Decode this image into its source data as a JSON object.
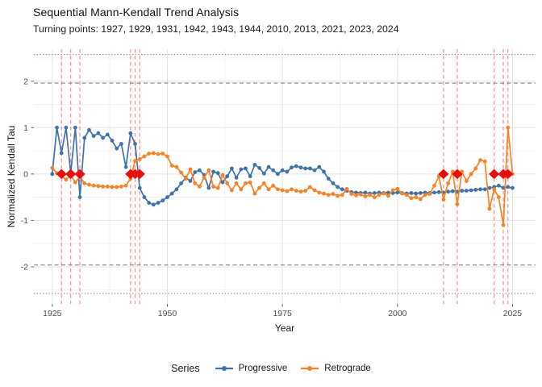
{
  "title": "Sequential Mann-Kendall Trend Analysis",
  "subtitle": "Turning points: 1927, 1929, 1931, 1942, 1943, 1944, 2010, 2013, 2021, 2023, 2024",
  "axes": {
    "x_label": "Year",
    "y_label": "Normalized Kendall Tau",
    "x_ticks": [
      1925,
      1950,
      1975,
      2000,
      2025
    ],
    "y_ticks": [
      -2,
      -1,
      0,
      1,
      2
    ]
  },
  "legend": {
    "title": "Series",
    "items": [
      {
        "label": "Progressive",
        "color": "#3e74ad"
      },
      {
        "label": "Retrograde",
        "color": "#fb8121"
      }
    ]
  },
  "colors": {
    "progressive": "#3e74ad",
    "retrograde": "#fb8121",
    "turning_point_marker": "#ec0c0c",
    "turning_point_line": "rgba(255,70,70,0.6)",
    "significance_dashed": "#808080",
    "critical_dotted": "#8c8c8c",
    "grid_major": "#e3e3e3",
    "grid_minor": "#f0f0f0",
    "tick_text": "#4d4d4d",
    "tick_mark": "#666666"
  },
  "chart_data": {
    "type": "line",
    "title": "Sequential Mann-Kendall Trend Analysis",
    "subtitle": "Turning points: 1927, 1929, 1931, 1942, 1943, 1944, 2010, 2013, 2021, 2023, 2024",
    "xlabel": "Year",
    "ylabel": "Normalized Kendall Tau",
    "xlim": [
      1921,
      2030
    ],
    "ylim": [
      -2.8,
      2.69
    ],
    "grid": true,
    "legend_position": "bottom",
    "x_minor_gridlines": [
      1937.5,
      1962.5,
      1987.5,
      2012.5
    ],
    "y_minor_gridlines": [
      -2.5,
      -1.5,
      -0.5,
      0.5,
      1.5,
      2.5
    ],
    "reference_lines": {
      "dashed_significance": [
        1.96,
        -1.96
      ],
      "dotted_critical": [
        2.576,
        -2.576
      ]
    },
    "turning_points": [
      1927,
      1929,
      1931,
      1942,
      1943,
      1944,
      2010,
      2013,
      2021,
      2023,
      2024
    ],
    "turning_point_y": 0,
    "x": [
      1925,
      1926,
      1927,
      1928,
      1929,
      1930,
      1931,
      1932,
      1933,
      1934,
      1935,
      1936,
      1937,
      1938,
      1939,
      1940,
      1941,
      1942,
      1943,
      1944,
      1945,
      1946,
      1947,
      1948,
      1949,
      1950,
      1951,
      1952,
      1953,
      1954,
      1955,
      1956,
      1957,
      1958,
      1959,
      1960,
      1961,
      1962,
      1963,
      1964,
      1965,
      1966,
      1967,
      1968,
      1969,
      1970,
      1971,
      1972,
      1973,
      1974,
      1975,
      1976,
      1977,
      1978,
      1979,
      1980,
      1981,
      1982,
      1983,
      1984,
      1985,
      1986,
      1987,
      1988,
      1989,
      1990,
      1991,
      1992,
      1993,
      1994,
      1995,
      1996,
      1997,
      1998,
      1999,
      2000,
      2001,
      2002,
      2003,
      2004,
      2005,
      2006,
      2007,
      2008,
      2009,
      2010,
      2011,
      2012,
      2013,
      2014,
      2015,
      2016,
      2017,
      2018,
      2019,
      2020,
      2021,
      2022,
      2023,
      2024,
      2025
    ],
    "series": [
      {
        "name": "Progressive",
        "color": "#3e74ad",
        "values": [
          0.0,
          1.0,
          0.45,
          1.0,
          0.02,
          1.0,
          -0.5,
          0.78,
          0.95,
          0.82,
          0.88,
          0.78,
          0.85,
          0.72,
          0.55,
          0.65,
          0.15,
          0.88,
          0.65,
          -0.3,
          -0.5,
          -0.62,
          -0.66,
          -0.62,
          -0.57,
          -0.5,
          -0.42,
          -0.33,
          -0.2,
          -0.08,
          -0.15,
          0.04,
          0.08,
          -0.02,
          -0.3,
          0.05,
          0.02,
          -0.18,
          -0.05,
          0.12,
          -0.08,
          0.1,
          0.12,
          -0.05,
          0.2,
          0.13,
          0.01,
          0.15,
          0.08,
          0.0,
          0.08,
          0.05,
          0.14,
          0.17,
          0.14,
          0.12,
          0.12,
          0.08,
          0.15,
          0.05,
          -0.1,
          -0.2,
          -0.28,
          -0.33,
          -0.36,
          -0.39,
          -0.4,
          -0.41,
          -0.4,
          -0.42,
          -0.41,
          -0.4,
          -0.41,
          -0.4,
          -0.41,
          -0.4,
          -0.41,
          -0.42,
          -0.41,
          -0.42,
          -0.41,
          -0.4,
          -0.41,
          -0.4,
          -0.39,
          -0.4,
          -0.38,
          -0.37,
          -0.38,
          -0.36,
          -0.36,
          -0.35,
          -0.34,
          -0.33,
          -0.33,
          -0.3,
          -0.28,
          -0.25,
          -0.3,
          -0.28,
          -0.3
        ]
      },
      {
        "name": "Retrograde",
        "color": "#fb8121",
        "values": [
          0.13,
          0.02,
          -0.05,
          -0.12,
          -0.02,
          -0.18,
          -0.05,
          -0.2,
          -0.23,
          -0.25,
          -0.26,
          -0.27,
          -0.27,
          -0.28,
          -0.28,
          -0.27,
          -0.25,
          -0.1,
          0.28,
          0.32,
          0.38,
          0.44,
          0.45,
          0.43,
          0.44,
          0.38,
          0.18,
          0.15,
          0.03,
          -0.1,
          0.1,
          -0.2,
          -0.27,
          -0.08,
          0.08,
          -0.27,
          -0.3,
          -0.02,
          -0.2,
          -0.35,
          -0.2,
          -0.33,
          -0.2,
          -0.18,
          -0.42,
          -0.3,
          -0.2,
          -0.33,
          -0.25,
          -0.33,
          -0.35,
          -0.37,
          -0.33,
          -0.36,
          -0.38,
          -0.36,
          -0.28,
          -0.35,
          -0.4,
          -0.42,
          -0.45,
          -0.43,
          -0.47,
          -0.45,
          -0.32,
          -0.43,
          -0.46,
          -0.44,
          -0.48,
          -0.45,
          -0.5,
          -0.45,
          -0.42,
          -0.47,
          -0.35,
          -0.32,
          -0.42,
          -0.45,
          -0.52,
          -0.5,
          -0.54,
          -0.45,
          -0.43,
          -0.25,
          -0.05,
          -0.55,
          -0.2,
          0.05,
          -0.65,
          0.05,
          -0.15,
          0.0,
          0.12,
          0.3,
          0.27,
          -0.75,
          -0.33,
          -0.5,
          -1.1,
          1.0,
          0.0
        ]
      }
    ]
  }
}
